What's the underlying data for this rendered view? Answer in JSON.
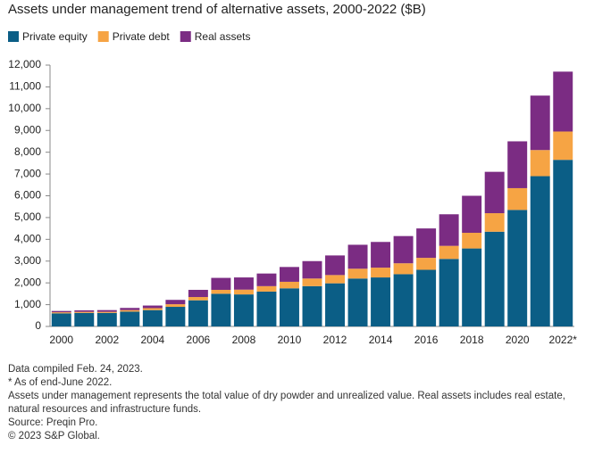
{
  "chart_data": {
    "type": "stacked_bar",
    "title": "Assets under management trend of alternative assets, 2000-2022 ($B)",
    "categories": [
      "2000",
      null,
      "2002",
      null,
      "2004",
      null,
      "2006",
      null,
      "2008",
      null,
      "2010",
      null,
      "2012",
      null,
      "2014",
      null,
      "2016",
      null,
      "2018",
      null,
      "2020",
      null,
      "2022*"
    ],
    "series": [
      {
        "name": "Private equity",
        "color": "#0b5e86",
        "values": [
          600,
          620,
          620,
          680,
          750,
          900,
          1200,
          1500,
          1470,
          1600,
          1750,
          1850,
          1980,
          2200,
          2250,
          2400,
          2600,
          3100,
          3580,
          4350,
          5350,
          6900,
          7650
        ]
      },
      {
        "name": "Private debt",
        "color": "#f6a444",
        "values": [
          50,
          50,
          50,
          70,
          90,
          120,
          150,
          180,
          220,
          250,
          300,
          350,
          380,
          450,
          450,
          500,
          550,
          600,
          720,
          850,
          1000,
          1200,
          1300
        ]
      },
      {
        "name": "Real assets",
        "color": "#7b2c83",
        "values": [
          60,
          70,
          80,
          100,
          120,
          200,
          330,
          550,
          560,
          580,
          680,
          800,
          900,
          1100,
          1180,
          1250,
          1350,
          1450,
          1700,
          1900,
          2150,
          2500,
          2750
        ]
      }
    ],
    "ylim": [
      0,
      12000
    ],
    "yticks": [
      0,
      {
        "value": 1000,
        "label": "1,000"
      },
      {
        "value": 2000,
        "label": "2,000"
      },
      {
        "value": 3000,
        "label": "3,000"
      },
      {
        "value": 4000,
        "label": "4,000"
      },
      {
        "value": 5000,
        "label": "5,000"
      },
      {
        "value": 6000,
        "label": "6,000"
      },
      {
        "value": 7000,
        "label": "7,000"
      },
      {
        "value": 8000,
        "label": "8,000"
      },
      {
        "value": 9000,
        "label": "9,000"
      },
      {
        "value": 10000,
        "label": "10,000"
      },
      {
        "value": 11000,
        "label": "11,000"
      },
      {
        "value": 12000,
        "label": "12,000"
      }
    ],
    "grid": false,
    "footnotes": [
      "Data compiled Feb. 24, 2023.",
      "* As of end-June 2022.",
      "Assets under management represents the total value of dry powder and unrealized value. Real assets includes real estate, natural resources and infrastructure funds.",
      "Source: Preqin Pro.",
      "© 2023 S&P Global."
    ]
  }
}
